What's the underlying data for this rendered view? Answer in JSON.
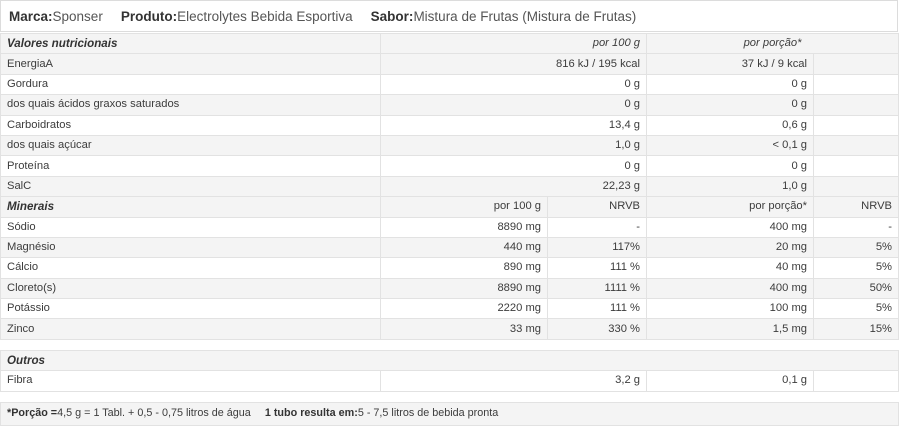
{
  "header": {
    "brand_label": "Marca:",
    "brand_value": "Sponser",
    "product_label": "Produto:",
    "product_value": "Electrolytes Bebida Esportiva",
    "flavor_label": "Sabor:",
    "flavor_value": "Mistura de Frutas (Mistura de Frutas)"
  },
  "nutrition": {
    "title": "Valores nutricionais",
    "col_100g": "por 100 g",
    "col_portion": "por porção*",
    "rows": [
      {
        "name": "EnergiaA",
        "per100": "816 kJ / 195 kcal",
        "portion": "37 kJ / 9 kcal"
      },
      {
        "name": "Gordura",
        "per100": "0 g",
        "portion": "0 g"
      },
      {
        "name": "dos quais ácidos graxos saturados",
        "per100": "0 g",
        "portion": "0 g"
      },
      {
        "name": "Carboidratos",
        "per100": "13,4 g",
        "portion": "0,6 g"
      },
      {
        "name": "dos quais açúcar",
        "per100": "1,0 g",
        "portion": "< 0,1 g"
      },
      {
        "name": "Proteína",
        "per100": "0 g",
        "portion": "0 g"
      },
      {
        "name": "SalC",
        "per100": "22,23 g",
        "portion": "1,0 g"
      }
    ]
  },
  "minerals": {
    "title": "Minerais",
    "col_100g": "por 100 g",
    "col_nrv1": "NRVB",
    "col_portion": "por porção*",
    "col_nrv2": "NRVB",
    "rows": [
      {
        "name": "Sódio",
        "per100": "8890 mg",
        "nrv1": "-",
        "portion": "400 mg",
        "nrv2": "-"
      },
      {
        "name": "Magnésio",
        "per100": "440 mg",
        "nrv1": "117%",
        "portion": "20 mg",
        "nrv2": "5%"
      },
      {
        "name": "Cálcio",
        "per100": "890 mg",
        "nrv1": "111 %",
        "portion": "40 mg",
        "nrv2": "5%"
      },
      {
        "name": "Cloreto(s)",
        "per100": "8890 mg",
        "nrv1": "1111 %",
        "portion": "400 mg",
        "nrv2": "50%"
      },
      {
        "name": "Potássio",
        "per100": "2220 mg",
        "nrv1": "111 %",
        "portion": "100 mg",
        "nrv2": "5%"
      },
      {
        "name": "Zinco",
        "per100": "33 mg",
        "nrv1": "330 %",
        "portion": "1,5 mg",
        "nrv2": "15%"
      }
    ]
  },
  "others": {
    "title": "Outros",
    "rows": [
      {
        "name": "Fibra",
        "per100": "3,2 g",
        "portion": "0,1 g"
      }
    ]
  },
  "footer": {
    "portion_label": "*Porção =",
    "portion_value": "4,5 g = 1 Tabl. + 0,5 - 0,75 litros de água",
    "yield_label": "1 tubo resulta em:",
    "yield_value": "5 - 7,5 litros de bebida pronta"
  }
}
